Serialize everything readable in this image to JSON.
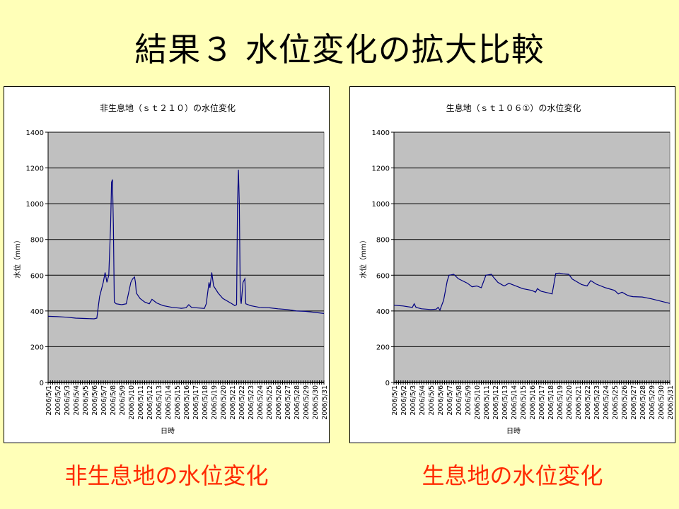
{
  "slide": {
    "title": "結果３ 水位変化の拡大比較",
    "caption_left": "非生息地の水位変化",
    "caption_right": "生息地の水位変化"
  },
  "colors": {
    "background": "#FFFFB8",
    "plot_area": "#C0C0C0",
    "series": "#000080",
    "caption": "#FF2A00"
  },
  "chart_data": [
    {
      "type": "line",
      "title": "非生息地（ｓｔ２１０）の水位変化",
      "xlabel": "日時",
      "ylabel": "水位（mm）",
      "ylim": [
        0,
        1400
      ],
      "yticks": [
        0,
        200,
        400,
        600,
        800,
        1000,
        1200,
        1400
      ],
      "xlim": [
        1,
        31
      ],
      "xtick_labels": [
        "2006/5/1",
        "2006/5/2",
        "2006/5/3",
        "2006/5/4",
        "2006/5/5",
        "2006/5/6",
        "2006/5/7",
        "2006/5/8",
        "2006/5/9",
        "2006/5/10",
        "2006/5/11",
        "2006/5/12",
        "2006/5/13",
        "2006/5/14",
        "2006/5/15",
        "2006/5/16",
        "2006/5/17",
        "2006/5/18",
        "2006/5/19",
        "2006/5/20",
        "2006/5/21",
        "2006/5/22",
        "2006/5/23",
        "2006/5/24",
        "2006/5/25",
        "2006/5/26",
        "2006/5/27",
        "2006/5/28",
        "2006/5/29",
        "2006/5/30",
        "2006/5/31"
      ],
      "grid": true,
      "legend": "none",
      "series": [
        {
          "x": [
            1,
            2,
            3,
            4,
            5,
            6,
            6.3,
            6.6,
            7.0,
            7.2,
            7.4,
            7.6,
            7.8,
            7.9,
            8.0,
            8.1,
            8.2,
            8.3,
            8.4,
            9.0,
            9.5,
            10.0,
            10.2,
            10.4,
            10.5,
            10.6,
            11.0,
            11.5,
            12.0,
            12.3,
            12.8,
            13.5,
            14.5,
            15.5,
            16.0,
            16.3,
            16.6,
            17.0,
            18.0,
            18.2,
            18.5,
            18.6,
            18.8,
            19.0,
            19.5,
            20.0,
            21.0,
            21.3,
            21.5,
            21.6,
            21.7,
            21.8,
            21.9,
            22.0,
            22.2,
            22.4,
            22.5,
            23.0,
            24.0,
            25.0,
            26.0,
            27.0,
            28.0,
            29.0,
            30.0,
            31.0
          ],
          "y": [
            370,
            368,
            365,
            360,
            358,
            356,
            360,
            480,
            560,
            615,
            560,
            600,
            880,
            1120,
            1135,
            880,
            450,
            445,
            440,
            435,
            440,
            560,
            580,
            590,
            560,
            500,
            470,
            450,
            440,
            465,
            445,
            430,
            420,
            415,
            418,
            435,
            420,
            418,
            414,
            440,
            560,
            530,
            615,
            540,
            500,
            470,
            440,
            430,
            435,
            1000,
            1190,
            990,
            480,
            440,
            560,
            580,
            440,
            430,
            420,
            418,
            412,
            408,
            400,
            398,
            392,
            386
          ]
        }
      ]
    },
    {
      "type": "line",
      "title": "生息地（ｓｔ１０６①）の水位変化",
      "xlabel": "日時",
      "ylabel": "水位（mm）",
      "ylim": [
        0,
        1400
      ],
      "yticks": [
        0,
        200,
        400,
        600,
        800,
        1000,
        1200,
        1400
      ],
      "xlim": [
        1,
        31
      ],
      "xtick_labels": [
        "2006/5/1",
        "2006/5/2",
        "2006/5/3",
        "2006/5/4",
        "2006/5/5",
        "2006/5/6",
        "2006/5/7",
        "2006/5/8",
        "2006/5/9",
        "2006/5/10",
        "2006/5/11",
        "2006/5/12",
        "2006/5/13",
        "2006/5/14",
        "2006/5/15",
        "2006/5/16",
        "2006/5/17",
        "2006/5/18",
        "2006/5/19",
        "2006/5/20",
        "2006/5/21",
        "2006/5/22",
        "2006/5/23",
        "2006/5/24",
        "2006/5/25",
        "2006/5/26",
        "2006/5/27",
        "2006/5/28",
        "2006/5/29",
        "2006/5/30",
        "2006/5/31"
      ],
      "grid": true,
      "legend": "none",
      "series": [
        {
          "x": [
            1,
            2,
            3,
            3.2,
            3.4,
            4,
            5,
            5.6,
            5.8,
            6.0,
            6.4,
            6.8,
            7.0,
            7.5,
            8.0,
            9.0,
            9.5,
            10.0,
            10.5,
            11.0,
            11.6,
            11.8,
            12.3,
            12.8,
            13.0,
            13.5,
            14.0,
            15.0,
            16.0,
            16.4,
            16.6,
            17.0,
            18.0,
            18.2,
            18.6,
            19.0,
            19.4,
            20.0,
            20.4,
            21.0,
            21.4,
            22.0,
            22.4,
            23.0,
            24.0,
            25.0,
            25.4,
            25.8,
            26.5,
            27.0,
            28.0,
            29.0,
            30.0,
            31.0
          ],
          "y": [
            432,
            428,
            420,
            440,
            420,
            412,
            408,
            410,
            420,
            405,
            460,
            570,
            600,
            605,
            580,
            555,
            535,
            540,
            530,
            600,
            605,
            590,
            560,
            545,
            540,
            555,
            545,
            525,
            515,
            505,
            525,
            510,
            498,
            495,
            610,
            612,
            608,
            605,
            578,
            560,
            548,
            540,
            570,
            550,
            530,
            515,
            495,
            505,
            485,
            480,
            478,
            468,
            455,
            442
          ]
        }
      ]
    }
  ]
}
